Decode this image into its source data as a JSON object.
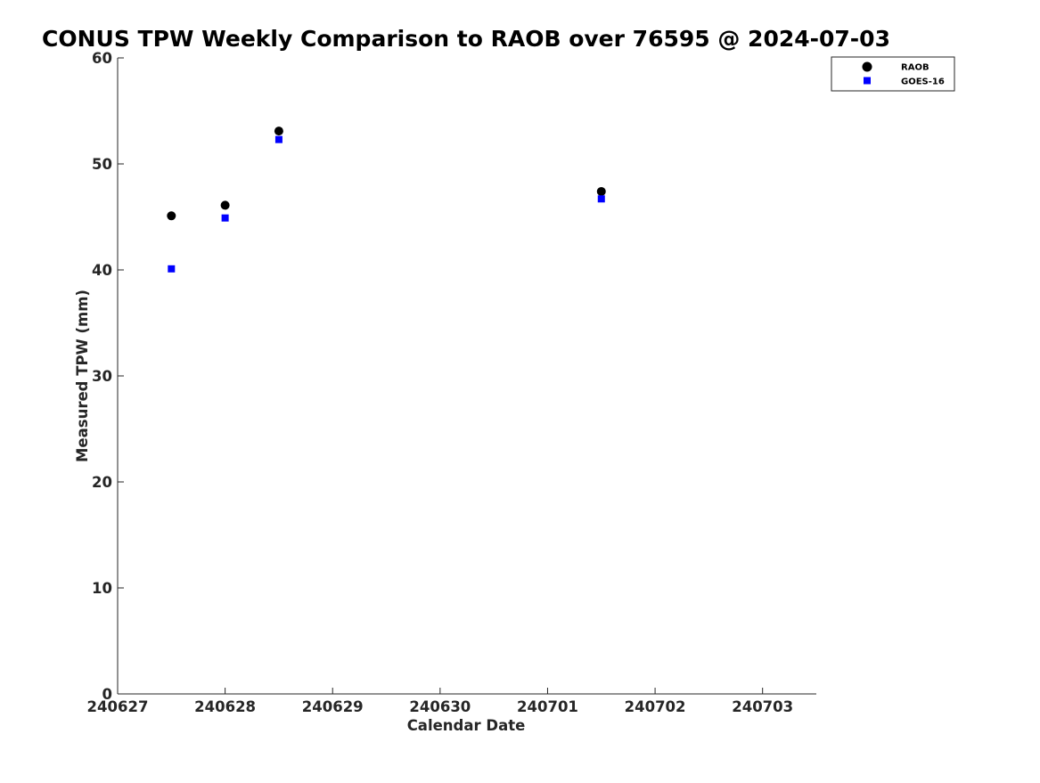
{
  "chart_data": {
    "type": "scatter",
    "title": "CONUS TPW Weekly Comparison to RAOB over 76595 @ 2024-07-03",
    "xlabel": "Calendar Date",
    "ylabel": "Measured TPW (mm)",
    "xlim": [
      "2024-06-27",
      "2024-07-03T12:00"
    ],
    "ylim": [
      0,
      60
    ],
    "x_ticks": [
      "2024-06-27",
      "2024-06-28",
      "2024-06-29",
      "2024-06-30",
      "2024-07-01",
      "2024-07-02",
      "2024-07-03"
    ],
    "x_tick_labels": [
      "240627",
      "240628",
      "240629",
      "240630",
      "240701",
      "240702",
      "240703"
    ],
    "y_ticks": [
      0,
      10,
      20,
      30,
      40,
      50,
      60
    ],
    "y_tick_labels": [
      "0",
      "10",
      "20",
      "30",
      "40",
      "50",
      "60"
    ],
    "grid": false,
    "legend_position": "top-right",
    "series": [
      {
        "name": "RAOB",
        "marker": "circle",
        "color": "#000000",
        "x": [
          "2024-06-27T12:00",
          "2024-06-28T00:00",
          "2024-06-28T12:00",
          "2024-07-01T12:00"
        ],
        "y": [
          45.1,
          46.1,
          53.1,
          47.4
        ]
      },
      {
        "name": "GOES-16",
        "marker": "square",
        "color": "#0000ff",
        "x": [
          "2024-06-27T12:00",
          "2024-06-28T00:00",
          "2024-06-28T12:00",
          "2024-07-01T12:00"
        ],
        "y": [
          40.1,
          44.9,
          52.3,
          46.7
        ]
      }
    ]
  }
}
